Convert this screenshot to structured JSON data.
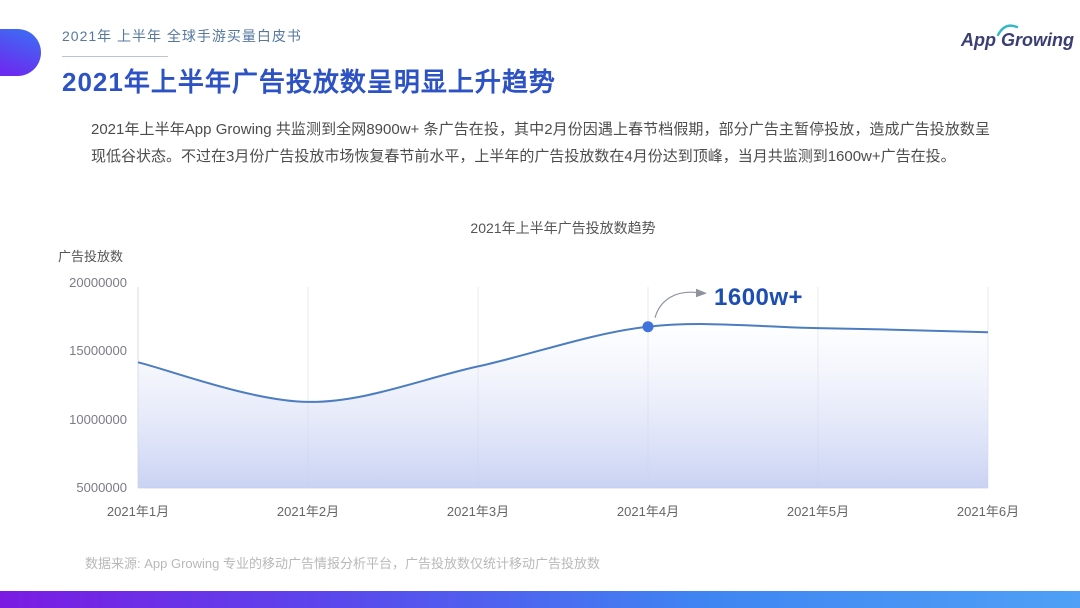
{
  "header": {
    "eyebrow": "2021年 上半年 全球手游买量白皮书",
    "title": "2021年上半年广告投放数呈明显上升趋势",
    "logo": {
      "word1": "App",
      "word2": "Growing"
    }
  },
  "paragraph": "2021年上半年App Growing 共监测到全网8900w+ 条广告在投，其中2月份因遇上春节档假期，部分广告主暂停投放，造成广告投放数呈现低谷状态。不过在3月份广告投放市场恢复春节前水平，上半年的广告投放数在4月份达到顶峰，当月共监测到1600w+广告在投。",
  "chart_data": {
    "type": "line",
    "title": "2021年上半年广告投放数趋势",
    "ylabel": "广告投放数",
    "xlabel": "",
    "categories": [
      "2021年1月",
      "2021年2月",
      "2021年3月",
      "2021年4月",
      "2021年5月",
      "2021年6月"
    ],
    "values": [
      14200000,
      11300000,
      13900000,
      16800000,
      16700000,
      16400000
    ],
    "ylim": [
      5000000,
      20000000
    ],
    "yticks": [
      20000000,
      15000000,
      10000000,
      5000000
    ],
    "grid": "vertical-only",
    "legend": "none",
    "smooth": true,
    "area": true,
    "annotation": {
      "text": "1600w+",
      "index": 3
    },
    "colors": {
      "line": "#4d7dc1",
      "point": "#3f74dd",
      "annotation_text": "#1d4eb2",
      "area_bottom": "#c6cff2",
      "gridline": "#e9eaf2",
      "axis": "#d9dbe6"
    }
  },
  "footer": {
    "source": "数据来源: App Growing 专业的移动广告情报分析平台，广告投放数仅统计移动广告投放数"
  },
  "theme": {
    "title_blue": "#2d52c4",
    "eyebrow_blue": "#56789f",
    "bar_gradient_left": "#7b1be2",
    "bar_gradient_right": "#4fa0f6"
  }
}
